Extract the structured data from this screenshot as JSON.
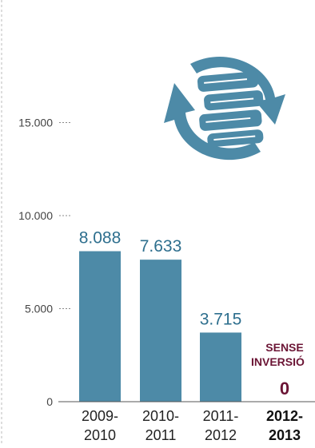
{
  "chart_data": {
    "type": "bar",
    "title": "",
    "xlabel": "",
    "ylabel": "",
    "ylim": [
      0,
      20000
    ],
    "y_ticks": [
      {
        "value": 0,
        "label": "0"
      },
      {
        "value": 5000,
        "label": "5.000"
      },
      {
        "value": 10000,
        "label": "10.000"
      },
      {
        "value": 15000,
        "label": "15.000"
      }
    ],
    "categories": [
      {
        "line1": "2009-",
        "line2": "2010",
        "highlight": false
      },
      {
        "line1": "2010-",
        "line2": "2011",
        "highlight": false
      },
      {
        "line1": "2011-",
        "line2": "2012",
        "highlight": false
      },
      {
        "line1": "2012-",
        "line2": "2013",
        "highlight": true
      }
    ],
    "values": [
      8088,
      7633,
      3715,
      0
    ],
    "value_labels": [
      "8.088",
      "7.633",
      "3.715",
      "0"
    ],
    "annotation": {
      "line1": "SENSE",
      "line2": "INVERSIÓ"
    },
    "colors": {
      "bar": "#4d8aa7",
      "value_label": "#2e6f8e",
      "highlight": "#6b1535",
      "axis": "#555555",
      "tick_label": "#444444",
      "grid_dash": "#888888",
      "border_dash": "#bbbbbb",
      "icon": "#4d8aa7",
      "icon_lines": "#ffffff"
    },
    "grid": false,
    "legend": "none",
    "icon_name": "books-recycle-icon"
  }
}
